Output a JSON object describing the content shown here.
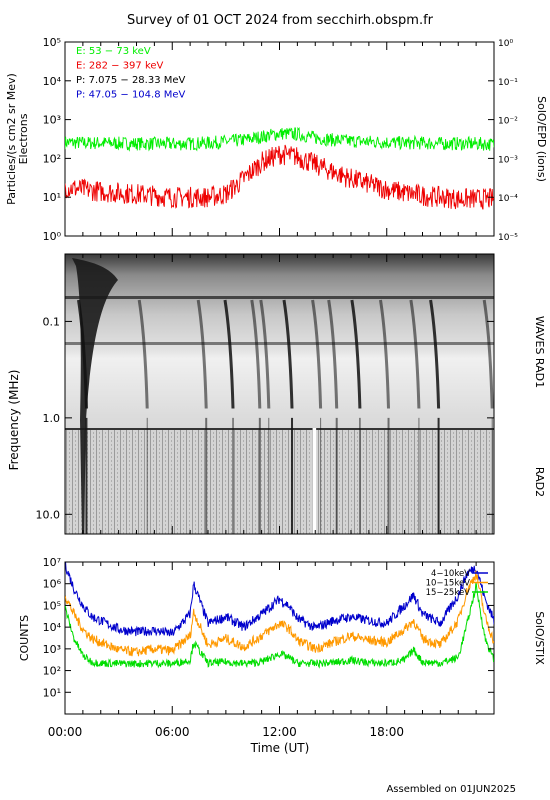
{
  "title": "Survey of 01 OCT 2024 from secchirh.obspm.fr",
  "footer": "Assembled on 01JUN2025",
  "x_axis": {
    "label": "Time (UT)",
    "range": [
      "00:00",
      "24:00"
    ],
    "tick_labels": [
      "00:00",
      "06:00",
      "12:00",
      "18:00"
    ]
  },
  "chart_data": [
    {
      "type": "line",
      "panel": "particles",
      "ylabel_left": "Particles/(s cm2 sr Mev)",
      "ylabel_left_2": "Electrons",
      "ylabel_right": "SolO/EPD (ions)",
      "y_scale": "log",
      "ylim": [
        1,
        100000
      ],
      "y_tick_labels": [
        "10⁰",
        "10¹",
        "10²",
        "10³",
        "10⁴",
        "10⁵"
      ],
      "y2lim": [
        1e-05,
        1
      ],
      "y2_tick_labels": [
        "10⁻⁵",
        "10⁻⁴",
        "10⁻³",
        "10⁻²",
        "10⁻¹",
        "10⁰"
      ],
      "legend": [
        {
          "label": "E: 53 − 73 keV",
          "color": "#00ee00"
        },
        {
          "label": "E: 282 − 397 keV",
          "color": "#ee0000"
        },
        {
          "label": "P: 7.075 − 28.33 MeV",
          "color": "#000000"
        },
        {
          "label": "P: 47.05 − 104.8 MeV",
          "color": "#0000cc"
        }
      ],
      "series": [
        {
          "color": "#00ee00",
          "x": [
            0,
            1,
            2,
            3,
            4,
            5,
            6,
            7,
            8,
            9,
            10,
            11,
            12,
            13,
            14,
            15,
            16,
            17,
            18,
            19,
            20,
            21,
            22,
            23,
            24
          ],
          "y": [
            260,
            250,
            250,
            245,
            240,
            240,
            235,
            240,
            250,
            270,
            300,
            360,
            440,
            420,
            340,
            300,
            280,
            270,
            260,
            250,
            250,
            240,
            240,
            240,
            230
          ]
        },
        {
          "color": "#ee0000",
          "x": [
            0,
            1,
            2,
            3,
            4,
            5,
            6,
            7,
            8,
            9,
            10,
            11,
            12,
            13,
            14,
            15,
            16,
            17,
            18,
            19,
            20,
            21,
            22,
            23,
            24
          ],
          "y": [
            18,
            16,
            14,
            13,
            12,
            11,
            10,
            10,
            10,
            12,
            30,
            80,
            130,
            110,
            70,
            45,
            30,
            22,
            16,
            13,
            11,
            10,
            9,
            9,
            9
          ]
        }
      ]
    },
    {
      "type": "heatmap",
      "panel": "radio",
      "ylabel": "Frequency (MHz)",
      "y_scale": "log",
      "y_inverted": true,
      "ylim": [
        0.02,
        16
      ],
      "y_tick_labels": [
        "0.1",
        "1.0",
        "10.0"
      ],
      "right_labels": [
        "WAVES RAD1",
        "RAD2"
      ],
      "bursts_hours": [
        1.2,
        4.6,
        7.9,
        9.4,
        10.9,
        11.4,
        12.7,
        14.3,
        15.2,
        16.5,
        18.1,
        19.8,
        20.9,
        23.9
      ],
      "data_gap_hours": [
        13.85,
        14.05
      ]
    },
    {
      "type": "line",
      "panel": "xray",
      "ylabel": "COUNTS",
      "ylabel_right": "SolO/STIX",
      "y_scale": "log",
      "ylim": [
        1,
        10000000
      ],
      "y_tick_labels": [
        "10¹",
        "10²",
        "10³",
        "10⁴",
        "10⁵",
        "10⁶",
        "10⁷"
      ],
      "legend": [
        {
          "label": "4−10keV",
          "color": "#0000cc"
        },
        {
          "label": "10−15keV",
          "color": "#ff9900"
        },
        {
          "label": "15−25keV",
          "color": "#00dd00"
        }
      ],
      "series": [
        {
          "color": "#0000cc",
          "x": [
            0,
            0.5,
            1,
            1.5,
            2,
            3,
            4,
            5,
            6,
            7,
            7.2,
            8,
            9,
            10,
            11,
            12,
            12.5,
            13,
            14,
            15,
            16,
            17,
            18,
            19,
            19.5,
            20,
            21,
            22,
            22.5,
            23,
            23.5,
            24
          ],
          "y": [
            8000000,
            600000,
            100000,
            30000,
            20000,
            8000,
            6000,
            7000,
            5000,
            40000,
            1000000,
            15000,
            30000,
            10000,
            40000,
            200000,
            100000,
            25000,
            9000,
            20000,
            30000,
            20000,
            15000,
            100000,
            300000,
            40000,
            15000,
            300000,
            3000000,
            6000000,
            200000,
            20000
          ]
        },
        {
          "color": "#ff9900",
          "x": [
            0,
            0.5,
            1,
            1.5,
            2,
            3,
            4,
            5,
            6,
            7,
            7.2,
            8,
            9,
            10,
            11,
            12,
            12.5,
            13,
            14,
            15,
            16,
            17,
            18,
            19,
            19.5,
            20,
            21,
            22,
            22.5,
            23,
            23.5,
            24
          ],
          "y": [
            300000,
            40000,
            8000,
            3000,
            2000,
            900,
            700,
            1000,
            800,
            4000,
            50000,
            1500,
            3000,
            1200,
            4000,
            15000,
            9000,
            2500,
            1000,
            2000,
            4000,
            2500,
            2000,
            8000,
            20000,
            3000,
            1500,
            20000,
            500000,
            3000000,
            30000,
            2000
          ]
        },
        {
          "color": "#00dd00",
          "x": [
            0,
            0.5,
            1,
            1.5,
            2,
            3,
            4,
            5,
            6,
            7,
            7.2,
            8,
            9,
            10,
            11,
            12,
            12.5,
            13,
            14,
            15,
            16,
            17,
            18,
            19,
            19.5,
            20,
            21,
            22,
            22.5,
            23,
            23.5,
            24
          ],
          "y": [
            80000,
            3000,
            500,
            250,
            220,
            210,
            210,
            220,
            210,
            300,
            2000,
            220,
            250,
            210,
            250,
            600,
            400,
            220,
            210,
            230,
            300,
            230,
            220,
            300,
            900,
            250,
            220,
            400,
            15000,
            800000,
            3000,
            300
          ]
        }
      ]
    }
  ]
}
